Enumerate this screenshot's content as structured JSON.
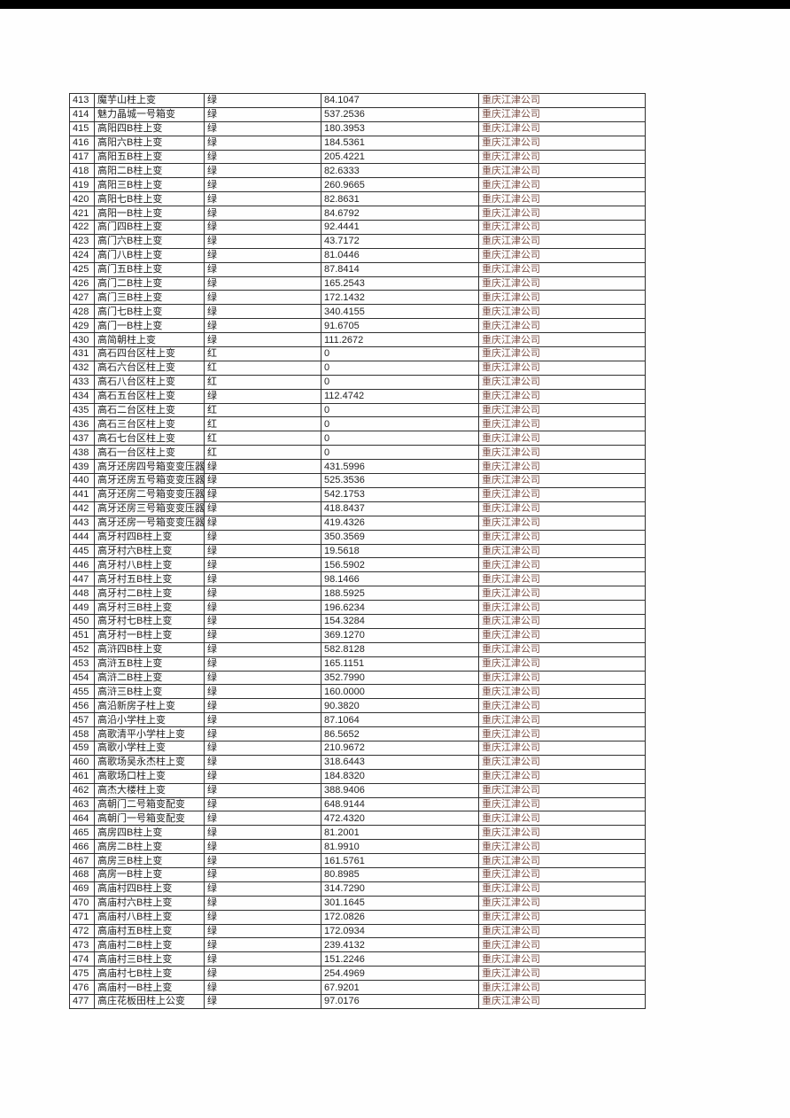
{
  "page": {
    "top_bar_color": "#000000",
    "page_background": "#fefefe",
    "table_border_color": "#303030",
    "company_text_color": "#7e5248",
    "body_text_color": "#1f1f1f"
  },
  "table": {
    "columns": [
      "id",
      "name",
      "status",
      "value",
      "company"
    ],
    "status_legend": {
      "green_label": "绿",
      "red_label": "红"
    },
    "rows": [
      [
        "413",
        "魔芋山柱上变",
        "绿",
        "84.1047",
        "重庆江津公司"
      ],
      [
        "414",
        "魅力晶城一号箱变",
        "绿",
        "537.2536",
        "重庆江津公司"
      ],
      [
        "415",
        "高阳四B柱上变",
        "绿",
        "180.3953",
        "重庆江津公司"
      ],
      [
        "416",
        "高阳六B柱上变",
        "绿",
        "184.5361",
        "重庆江津公司"
      ],
      [
        "417",
        "高阳五B柱上变",
        "绿",
        "205.4221",
        "重庆江津公司"
      ],
      [
        "418",
        "高阳二B柱上变",
        "绿",
        "82.6333",
        "重庆江津公司"
      ],
      [
        "419",
        "高阳三B柱上变",
        "绿",
        "260.9665",
        "重庆江津公司"
      ],
      [
        "420",
        "高阳七B柱上变",
        "绿",
        "82.8631",
        "重庆江津公司"
      ],
      [
        "421",
        "高阳一B柱上变",
        "绿",
        "84.6792",
        "重庆江津公司"
      ],
      [
        "422",
        "高门四B柱上变",
        "绿",
        "92.4441",
        "重庆江津公司"
      ],
      [
        "423",
        "高门六B柱上变",
        "绿",
        "43.7172",
        "重庆江津公司"
      ],
      [
        "424",
        "高门八B柱上变",
        "绿",
        "81.0446",
        "重庆江津公司"
      ],
      [
        "425",
        "高门五B柱上变",
        "绿",
        "87.8414",
        "重庆江津公司"
      ],
      [
        "426",
        "高门二B柱上变",
        "绿",
        "165.2543",
        "重庆江津公司"
      ],
      [
        "427",
        "高门三B柱上变",
        "绿",
        "172.1432",
        "重庆江津公司"
      ],
      [
        "428",
        "高门七B柱上变",
        "绿",
        "340.4155",
        "重庆江津公司"
      ],
      [
        "429",
        "高门一B柱上变",
        "绿",
        "91.6705",
        "重庆江津公司"
      ],
      [
        "430",
        "高简朝柱上变",
        "绿",
        "111.2672",
        "重庆江津公司"
      ],
      [
        "431",
        "高石四台区柱上变",
        "红",
        "0",
        "重庆江津公司"
      ],
      [
        "432",
        "高石六台区柱上变",
        "红",
        "0",
        "重庆江津公司"
      ],
      [
        "433",
        "高石八台区柱上变",
        "红",
        "0",
        "重庆江津公司"
      ],
      [
        "434",
        "高石五台区柱上变",
        "绿",
        "112.4742",
        "重庆江津公司"
      ],
      [
        "435",
        "高石二台区柱上变",
        "红",
        "0",
        "重庆江津公司"
      ],
      [
        "436",
        "高石三台区柱上变",
        "红",
        "0",
        "重庆江津公司"
      ],
      [
        "437",
        "高石七台区柱上变",
        "红",
        "0",
        "重庆江津公司"
      ],
      [
        "438",
        "高石一台区柱上变",
        "红",
        "0",
        "重庆江津公司"
      ],
      [
        "439",
        "高牙还房四号箱变变压器",
        "绿",
        "431.5996",
        "重庆江津公司"
      ],
      [
        "440",
        "高牙还房五号箱变变压器",
        "绿",
        "525.3536",
        "重庆江津公司"
      ],
      [
        "441",
        "高牙还房二号箱变变压器",
        "绿",
        "542.1753",
        "重庆江津公司"
      ],
      [
        "442",
        "高牙还房三号箱变变压器",
        "绿",
        "418.8437",
        "重庆江津公司"
      ],
      [
        "443",
        "高牙还房一号箱变变压器",
        "绿",
        "419.4326",
        "重庆江津公司"
      ],
      [
        "444",
        "高牙村四B柱上变",
        "绿",
        "350.3569",
        "重庆江津公司"
      ],
      [
        "445",
        "高牙村六B柱上变",
        "绿",
        "19.5618",
        "重庆江津公司"
      ],
      [
        "446",
        "高牙村八B柱上变",
        "绿",
        "156.5902",
        "重庆江津公司"
      ],
      [
        "447",
        "高牙村五B柱上变",
        "绿",
        "98.1466",
        "重庆江津公司"
      ],
      [
        "448",
        "高牙村二B柱上变",
        "绿",
        "188.5925",
        "重庆江津公司"
      ],
      [
        "449",
        "高牙村三B柱上变",
        "绿",
        "196.6234",
        "重庆江津公司"
      ],
      [
        "450",
        "高牙村七B柱上变",
        "绿",
        "154.3284",
        "重庆江津公司"
      ],
      [
        "451",
        "高牙村一B柱上变",
        "绿",
        "369.1270",
        "重庆江津公司"
      ],
      [
        "452",
        "高浒四B柱上变",
        "绿",
        "582.8128",
        "重庆江津公司"
      ],
      [
        "453",
        "高浒五B柱上变",
        "绿",
        "165.1151",
        "重庆江津公司"
      ],
      [
        "454",
        "高浒二B柱上变",
        "绿",
        "352.7990",
        "重庆江津公司"
      ],
      [
        "455",
        "高浒三B柱上变",
        "绿",
        "160.0000",
        "重庆江津公司"
      ],
      [
        "456",
        "高沿新房子柱上变",
        "绿",
        "90.3820",
        "重庆江津公司"
      ],
      [
        "457",
        "高沿小学柱上变",
        "绿",
        "87.1064",
        "重庆江津公司"
      ],
      [
        "458",
        "高歌清平小学柱上变",
        "绿",
        "86.5652",
        "重庆江津公司"
      ],
      [
        "459",
        "高歌小学柱上变",
        "绿",
        "210.9672",
        "重庆江津公司"
      ],
      [
        "460",
        "高歌场吴永杰柱上变",
        "绿",
        "318.6443",
        "重庆江津公司"
      ],
      [
        "461",
        "高歌场口柱上变",
        "绿",
        "184.8320",
        "重庆江津公司"
      ],
      [
        "462",
        "高杰大楼柱上变",
        "绿",
        "388.9406",
        "重庆江津公司"
      ],
      [
        "463",
        "高朝门二号箱变配变",
        "绿",
        "648.9144",
        "重庆江津公司"
      ],
      [
        "464",
        "高朝门一号箱变配变",
        "绿",
        "472.4320",
        "重庆江津公司"
      ],
      [
        "465",
        "高房四B柱上变",
        "绿",
        "81.2001",
        "重庆江津公司"
      ],
      [
        "466",
        "高房二B柱上变",
        "绿",
        "81.9910",
        "重庆江津公司"
      ],
      [
        "467",
        "高房三B柱上变",
        "绿",
        "161.5761",
        "重庆江津公司"
      ],
      [
        "468",
        "高房一B柱上变",
        "绿",
        "80.8985",
        "重庆江津公司"
      ],
      [
        "469",
        "高庙村四B柱上变",
        "绿",
        "314.7290",
        "重庆江津公司"
      ],
      [
        "470",
        "高庙村六B柱上变",
        "绿",
        "301.1645",
        "重庆江津公司"
      ],
      [
        "471",
        "高庙村八B柱上变",
        "绿",
        "172.0826",
        "重庆江津公司"
      ],
      [
        "472",
        "高庙村五B柱上变",
        "绿",
        "172.0934",
        "重庆江津公司"
      ],
      [
        "473",
        "高庙村二B柱上变",
        "绿",
        "239.4132",
        "重庆江津公司"
      ],
      [
        "474",
        "高庙村三B柱上变",
        "绿",
        "151.2246",
        "重庆江津公司"
      ],
      [
        "475",
        "高庙村七B柱上变",
        "绿",
        "254.4969",
        "重庆江津公司"
      ],
      [
        "476",
        "高庙村一B柱上变",
        "绿",
        "67.9201",
        "重庆江津公司"
      ],
      [
        "477",
        "高庄花板田柱上公变",
        "绿",
        "97.0176",
        "重庆江津公司"
      ]
    ]
  }
}
